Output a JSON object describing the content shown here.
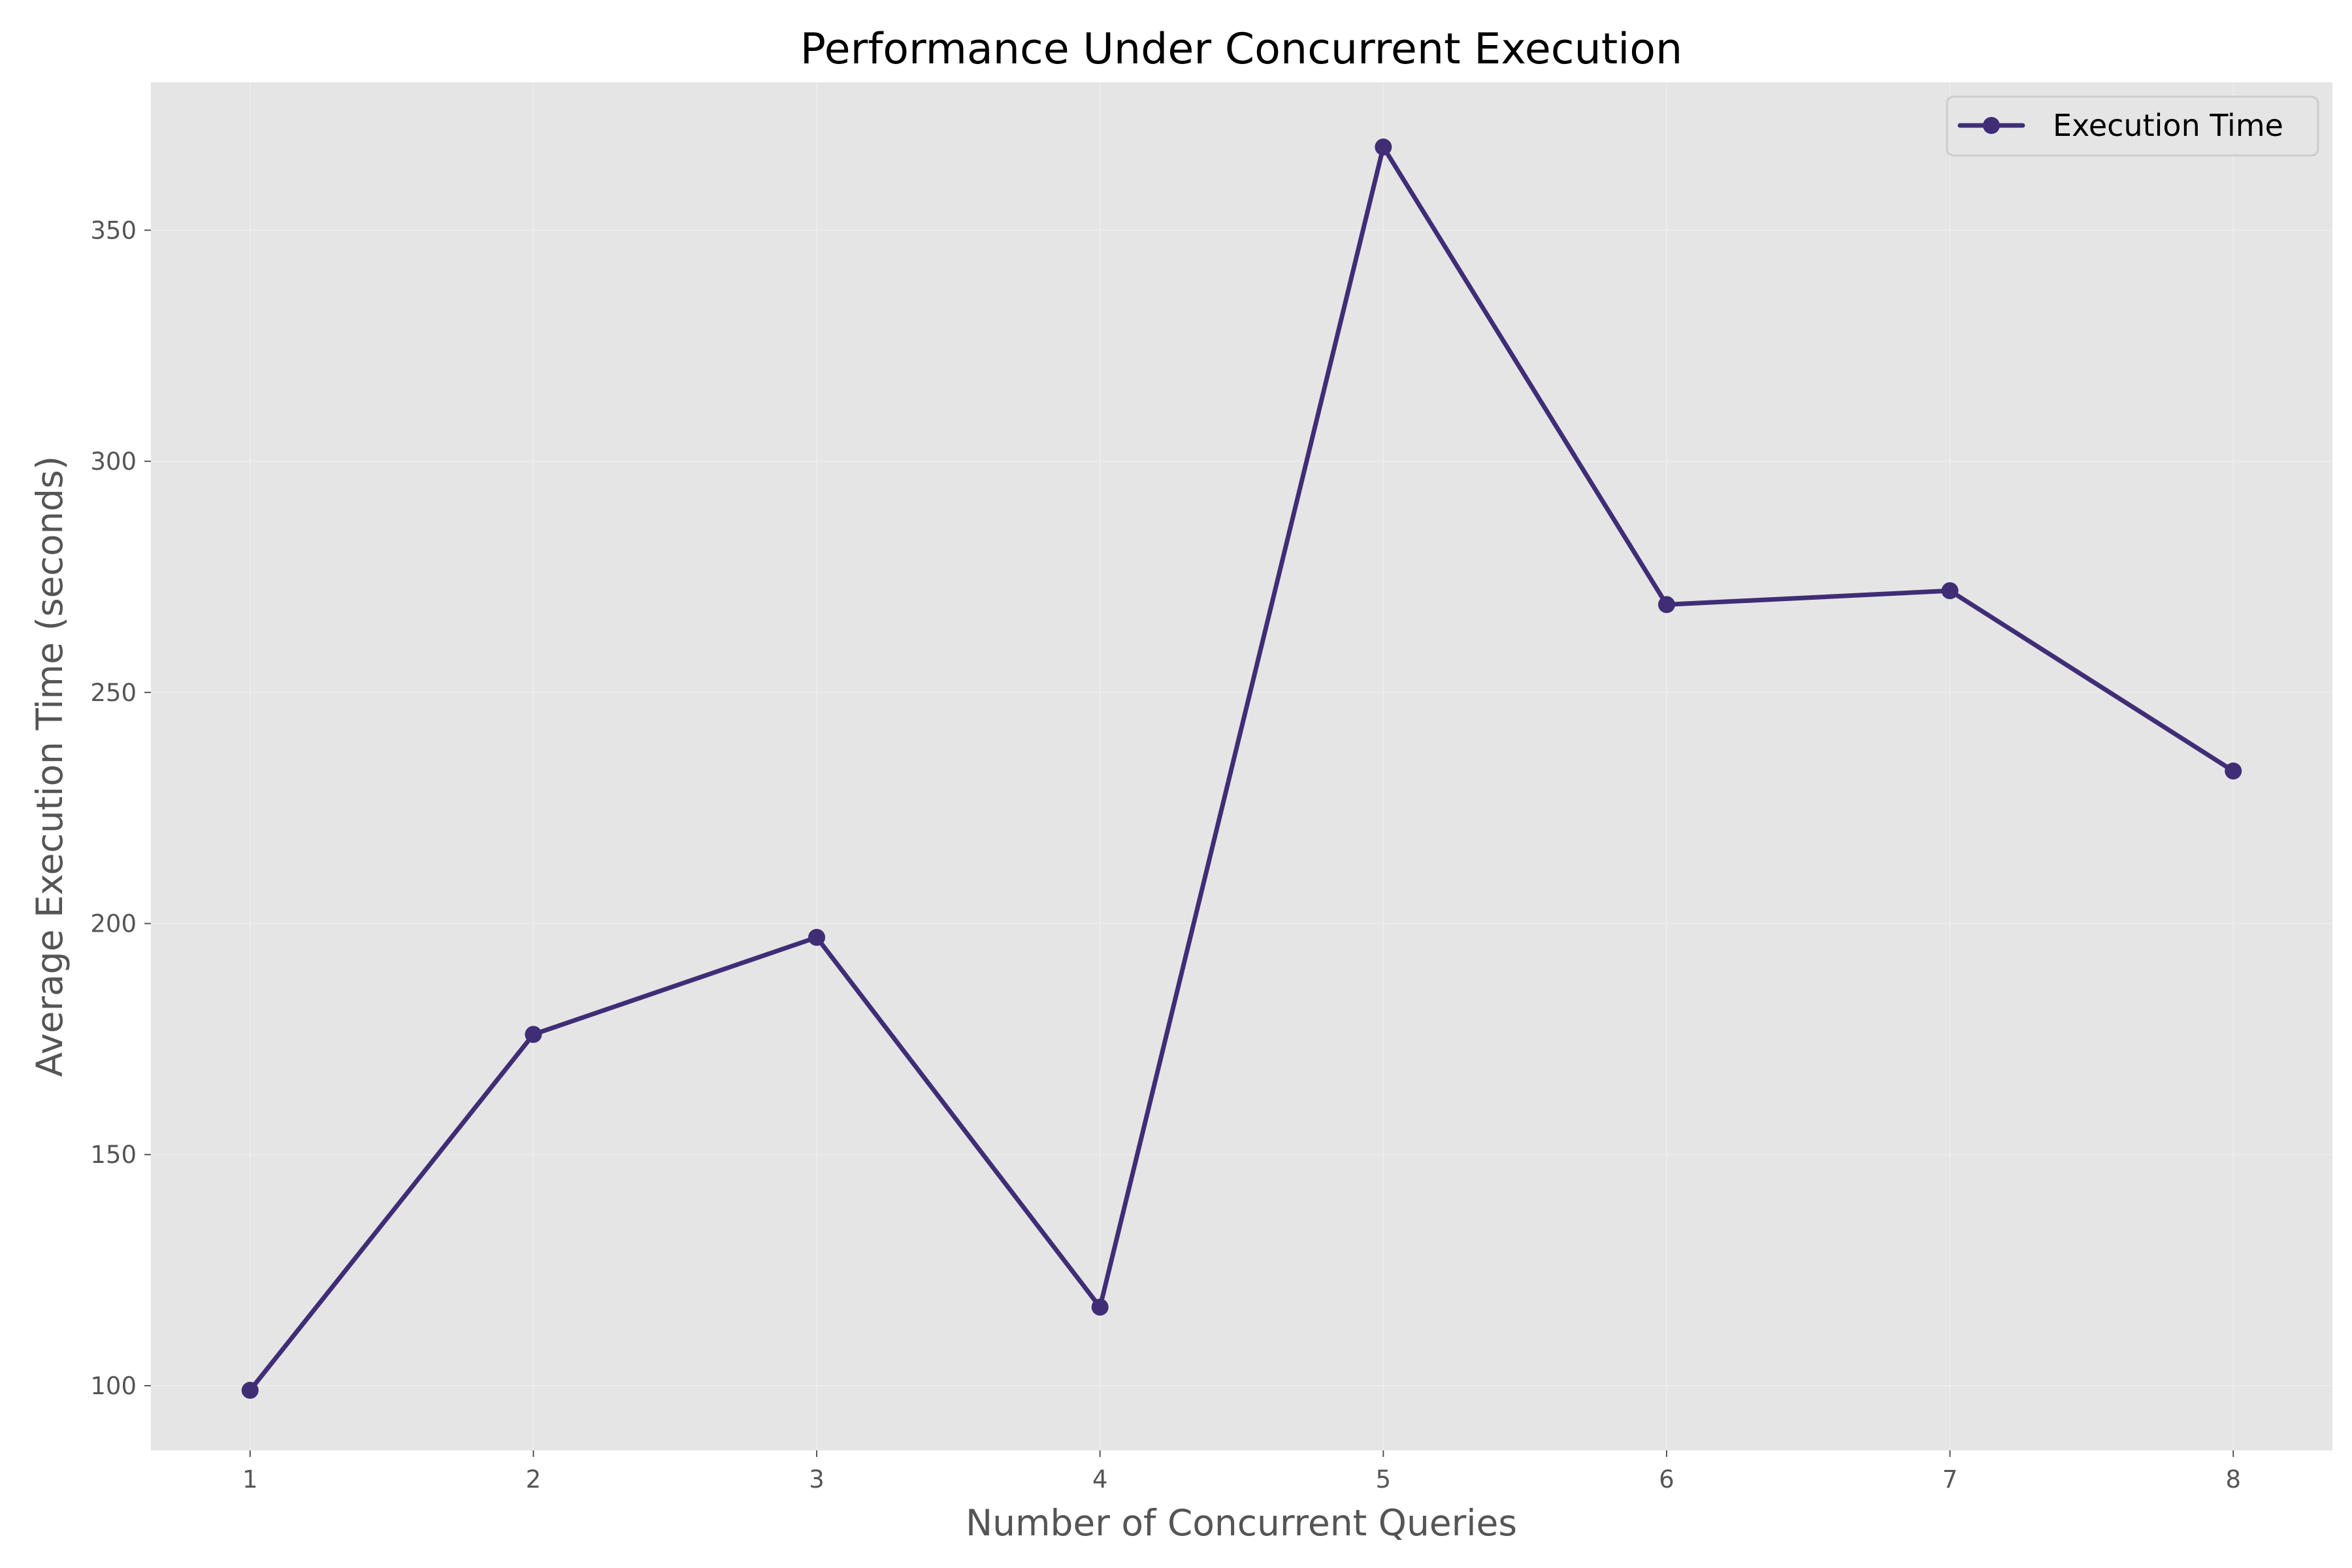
{
  "chart_data": {
    "type": "line",
    "title": "Performance Under Concurrent Execution",
    "xlabel": "Number of Concurrent Queries",
    "ylabel": "Average Execution Time (seconds)",
    "x": [
      1,
      2,
      3,
      4,
      5,
      6,
      7,
      8
    ],
    "x_ticks": [
      "1",
      "2",
      "3",
      "4",
      "5",
      "6",
      "7",
      "8"
    ],
    "y_ticks": [
      "100",
      "150",
      "200",
      "250",
      "300",
      "350"
    ],
    "y_tick_values": [
      100,
      150,
      200,
      250,
      300,
      350
    ],
    "xlim": [
      0.65,
      8.35
    ],
    "ylim": [
      86,
      382
    ],
    "series": [
      {
        "name": "Execution Time",
        "color": "#3f2d76",
        "values": [
          99,
          176,
          197,
          117,
          368,
          269,
          272,
          233
        ]
      }
    ],
    "legend": "top-right",
    "grid": true,
    "background": "#e5e5e5"
  }
}
